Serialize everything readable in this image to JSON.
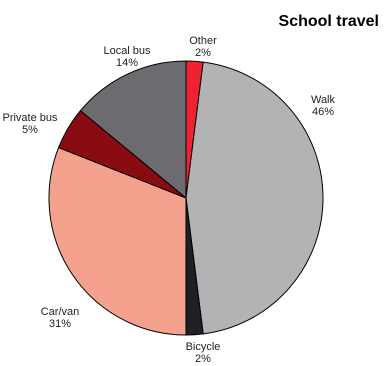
{
  "chart_data": {
    "type": "pie",
    "title": "School travel",
    "categories": [
      "Other",
      "Walk",
      "Bicycle",
      "Car/van",
      "Private bus",
      "Local bus"
    ],
    "values": [
      2,
      46,
      2,
      31,
      5,
      14
    ],
    "value_labels": [
      "2%",
      "46%",
      "2%",
      "31%",
      "5%",
      "14%"
    ],
    "colors": [
      "#ee2233",
      "#b3b3b6",
      "#1f1f24",
      "#f4a18e",
      "#880c12",
      "#6c6c70"
    ],
    "start": "12 o'clock",
    "direction": "clockwise",
    "legend": "none"
  }
}
